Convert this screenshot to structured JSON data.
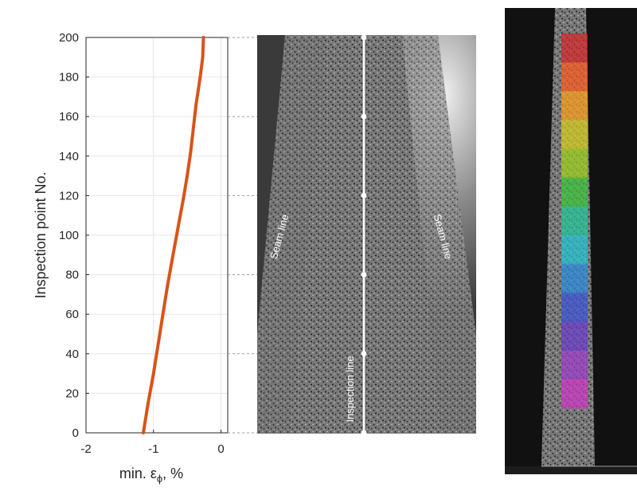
{
  "chart_data": {
    "type": "line",
    "xlabel": "min. ε",
    "xlabel_subscript": "ϕ",
    "xlabel_unit": ", %",
    "ylabel": "Inspection point No.",
    "xlim": [
      -2,
      0.1
    ],
    "ylim": [
      0,
      200
    ],
    "xticks": [
      -2,
      -1,
      0
    ],
    "yticks": [
      0,
      20,
      40,
      60,
      80,
      100,
      120,
      140,
      160,
      180,
      200
    ],
    "grid": true,
    "series": [
      {
        "color": "#d95319",
        "x": [
          -1.15,
          -1.08,
          -1.0,
          -0.93,
          -0.86,
          -0.79,
          -0.71,
          -0.63,
          -0.56,
          -0.5,
          -0.45,
          -0.41,
          -0.37,
          -0.33,
          -0.3,
          -0.27,
          -0.26
        ],
        "y": [
          0,
          15,
          30,
          45,
          60,
          75,
          90,
          105,
          118,
          130,
          142,
          154,
          166,
          175,
          182,
          190,
          200
        ]
      }
    ]
  },
  "photo": {
    "seam_label": "Seam line",
    "inspection_label": "Inspection line",
    "marked_points": [
      0,
      40,
      80,
      120,
      160,
      200
    ]
  },
  "colors": {
    "line": "#d95319",
    "grid": "#e5e5e5",
    "axis": "#262626",
    "photo_background": "#2b2b2b",
    "specimen": "#6f6f6f",
    "right_background": "#111111"
  },
  "strain_bands": [
    "#d62728",
    "#ff5a1f",
    "#ff9f1a",
    "#d9cf1c",
    "#9fd31a",
    "#3cc83a",
    "#22c79a",
    "#22c6d6",
    "#2a8de0",
    "#3b55d8",
    "#6a3ccc",
    "#a03dcc",
    "#d036c8"
  ]
}
